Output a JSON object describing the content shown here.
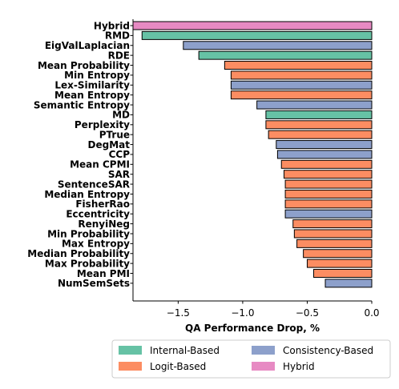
{
  "chart_data": {
    "type": "bar",
    "orientation": "horizontal",
    "xlabel": "QA Performance Drop, %",
    "xlim": [
      -1.85,
      0.0
    ],
    "xticks": [
      -1.5,
      -1.0,
      -0.5,
      0.0
    ],
    "xtick_labels": [
      "−1.5",
      "−1.0",
      "−0.5",
      "0.0"
    ],
    "grid": false,
    "legend_position": "bottom",
    "groups": [
      {
        "name": "Internal-Based",
        "color": "#66c2a5"
      },
      {
        "name": "Logit-Based",
        "color": "#fc8d62"
      },
      {
        "name": "Consistency-Based",
        "color": "#8da0cb"
      },
      {
        "name": "Hybrid",
        "color": "#e78ac3"
      }
    ],
    "categories": [
      "Hybrid",
      "RMD",
      "EigValLaplacian",
      "RDE",
      "Mean Probability",
      "Min Entropy",
      "Lex-Similarity",
      "Mean Entropy",
      "Semantic Entropy",
      "MD",
      "Perplexity",
      "PTrue",
      "DegMat",
      "CCP",
      "Mean CPMI",
      "SAR",
      "SentenceSAR",
      "Median Entropy",
      "FisherRao",
      "Eccentricity",
      "RenyiNeg",
      "Min Probability",
      "Max Entropy",
      "Median Probability",
      "Max Probability",
      "Mean PMI",
      "NumSemSets"
    ],
    "values": [
      -1.85,
      -1.78,
      -1.46,
      -1.34,
      -1.14,
      -1.09,
      -1.09,
      -1.09,
      -0.89,
      -0.82,
      -0.82,
      -0.8,
      -0.74,
      -0.73,
      -0.7,
      -0.68,
      -0.67,
      -0.67,
      -0.67,
      -0.67,
      -0.61,
      -0.6,
      -0.58,
      -0.53,
      -0.5,
      -0.45,
      -0.36
    ],
    "bar_groups": [
      "Hybrid",
      "Internal-Based",
      "Consistency-Based",
      "Internal-Based",
      "Logit-Based",
      "Logit-Based",
      "Consistency-Based",
      "Logit-Based",
      "Consistency-Based",
      "Internal-Based",
      "Logit-Based",
      "Logit-Based",
      "Consistency-Based",
      "Consistency-Based",
      "Logit-Based",
      "Logit-Based",
      "Logit-Based",
      "Logit-Based",
      "Logit-Based",
      "Consistency-Based",
      "Logit-Based",
      "Logit-Based",
      "Logit-Based",
      "Logit-Based",
      "Logit-Based",
      "Logit-Based",
      "Consistency-Based"
    ]
  }
}
